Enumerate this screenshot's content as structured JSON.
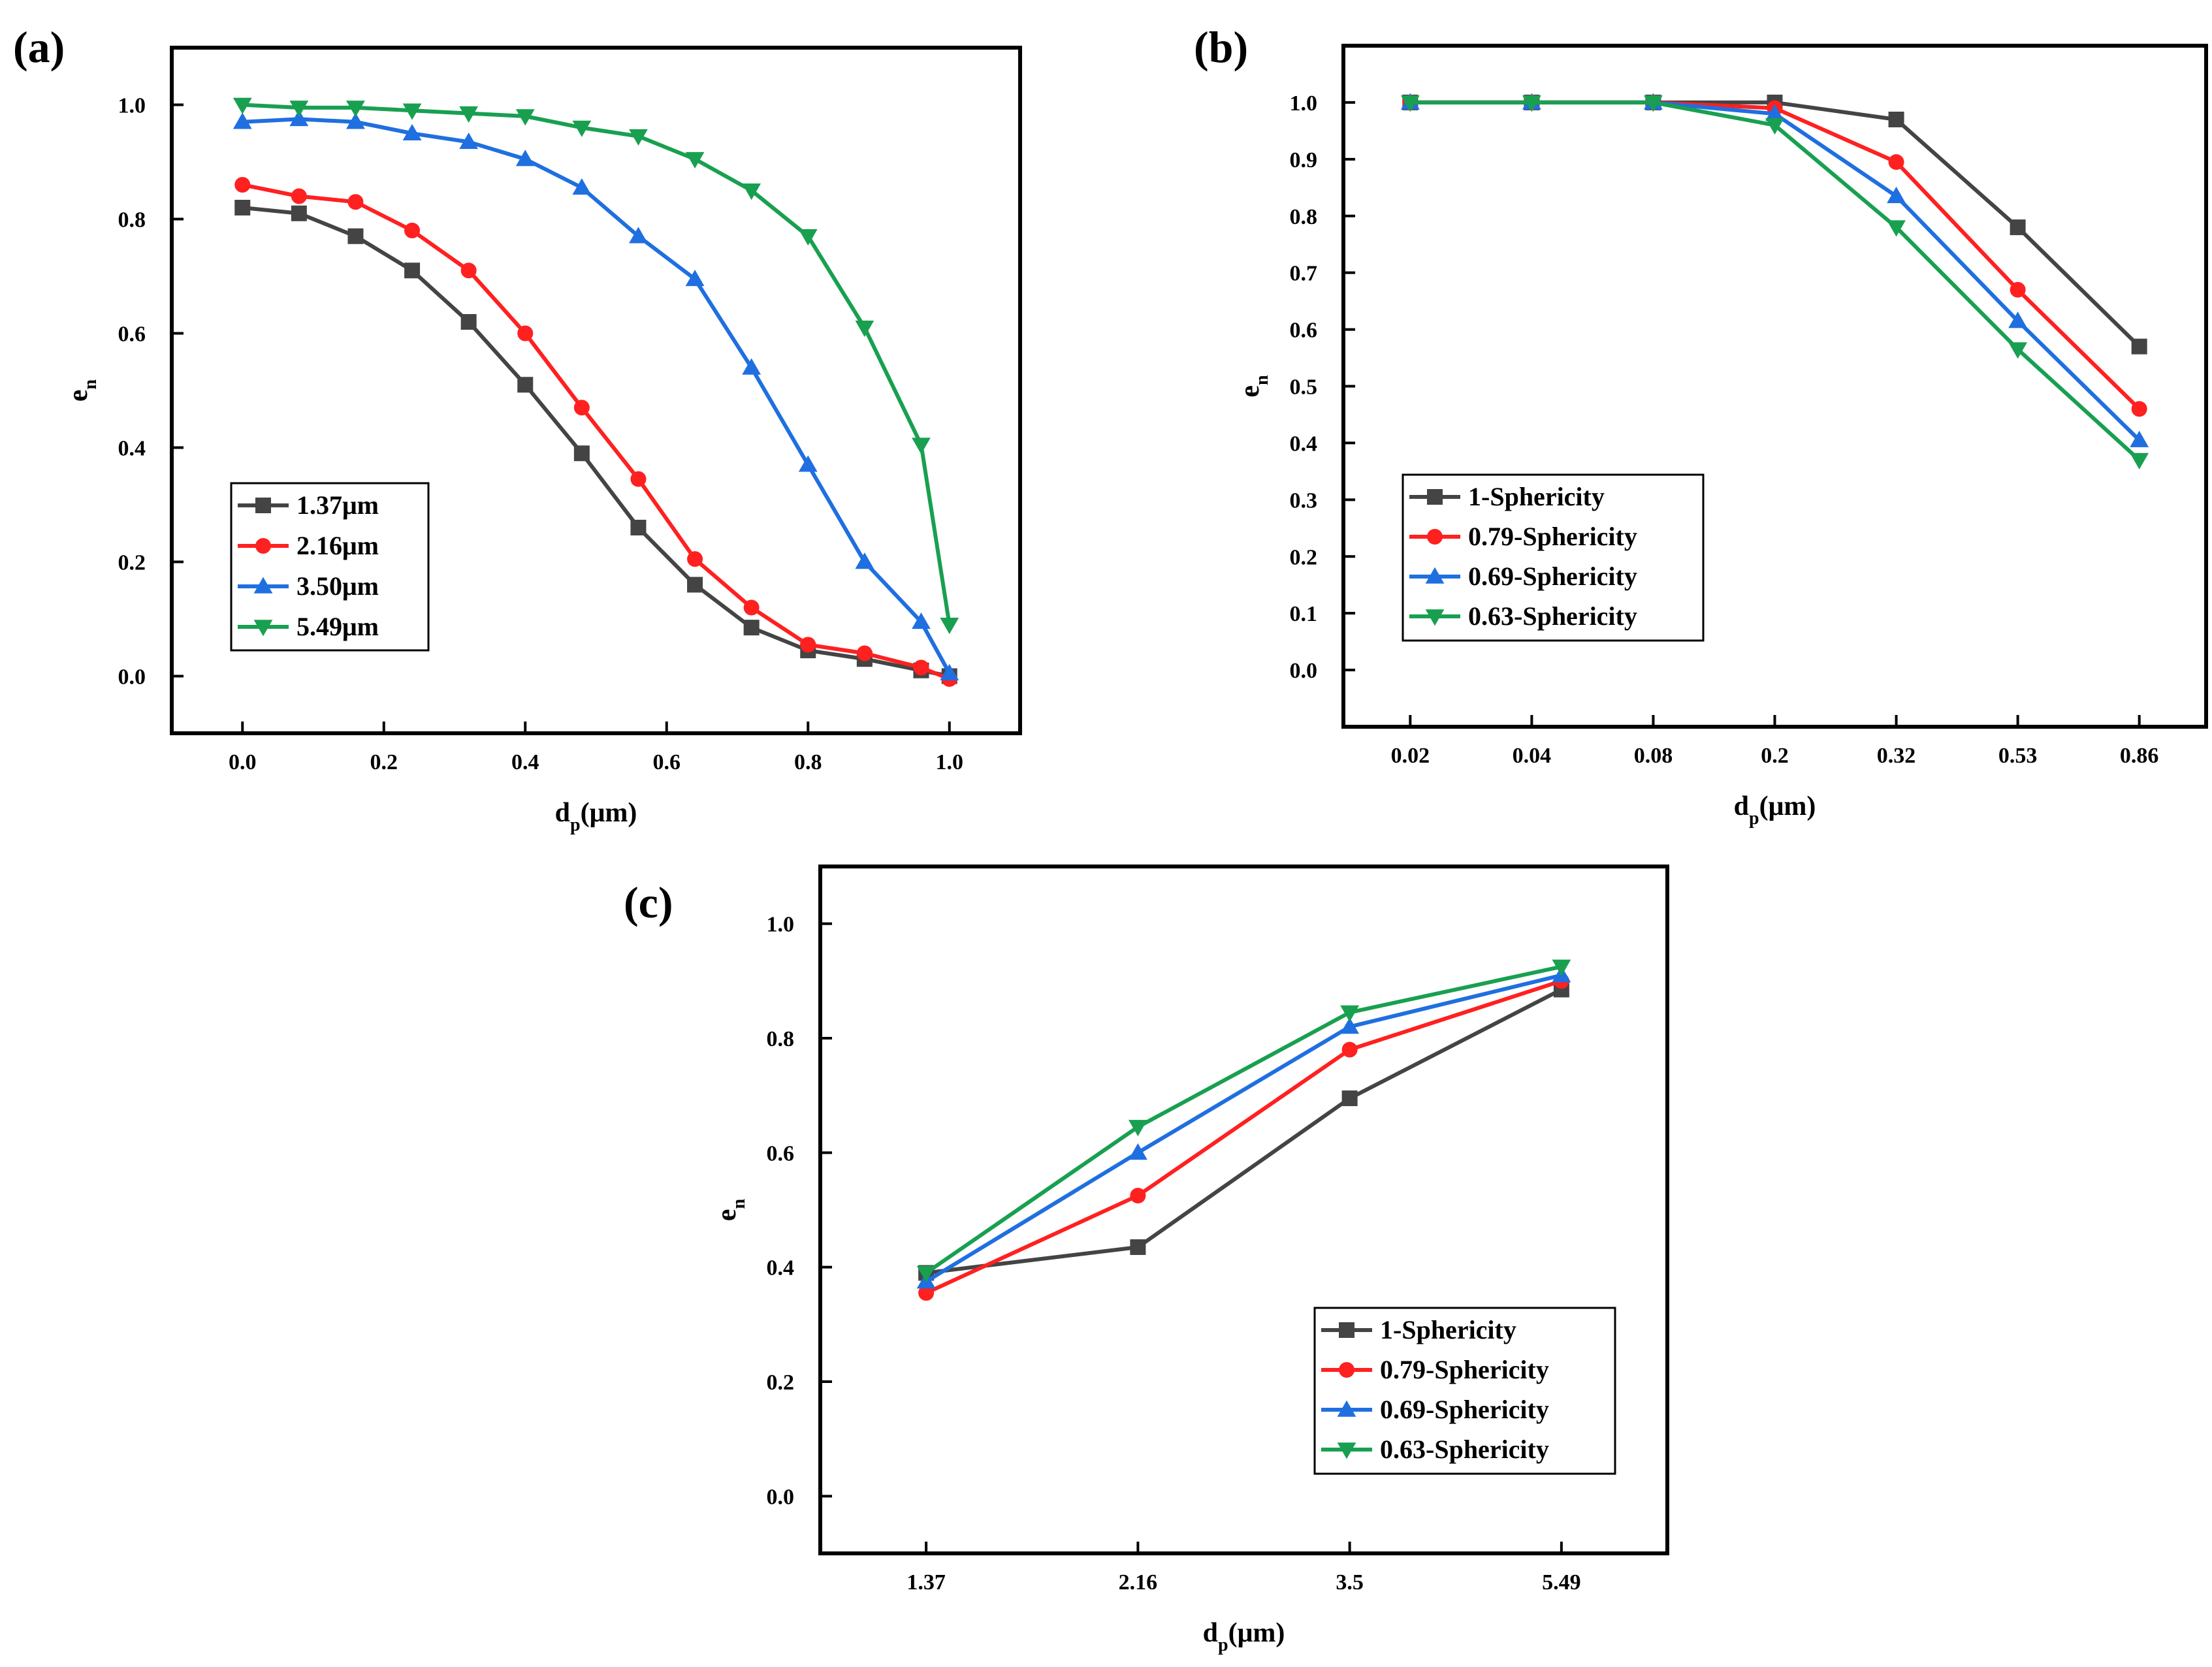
{
  "chart_data": [
    {
      "id": "a",
      "panel_label": "(a)",
      "type": "line",
      "xlabel": "d",
      "xlabel_sub": "p",
      "xlabel_unit": "(μm)",
      "ylabel": "e",
      "ylabel_sub": "n",
      "xlim": [
        -0.1,
        1.1
      ],
      "ylim": [
        -0.1,
        1.1
      ],
      "xticks": [
        0.0,
        0.2,
        0.4,
        0.6,
        0.8,
        1.0
      ],
      "xtick_labels": [
        "0.0",
        "0.2",
        "0.4",
        "0.6",
        "0.8",
        "1.0"
      ],
      "yticks": [
        0.0,
        0.2,
        0.4,
        0.6,
        0.8,
        1.0
      ],
      "ytick_labels": [
        "0.0",
        "0.2",
        "0.4",
        "0.6",
        "0.8",
        "1.0"
      ],
      "legend_position": "lower-left",
      "x": [
        0.0,
        0.08,
        0.16,
        0.24,
        0.32,
        0.4,
        0.48,
        0.56,
        0.64,
        0.72,
        0.8,
        0.88,
        0.96,
        1.0
      ],
      "series": [
        {
          "name": "1.37μm",
          "color": "#444444",
          "marker": "square",
          "values": [
            0.82,
            0.81,
            0.77,
            0.71,
            0.62,
            0.51,
            0.39,
            0.26,
            0.16,
            0.085,
            0.045,
            0.03,
            0.01,
            0.0
          ]
        },
        {
          "name": "2.16μm",
          "color": "#ff2020",
          "marker": "circle",
          "values": [
            0.86,
            0.84,
            0.83,
            0.78,
            0.71,
            0.6,
            0.47,
            0.345,
            0.205,
            0.12,
            0.055,
            0.04,
            0.015,
            -0.005
          ]
        },
        {
          "name": "3.50μm",
          "color": "#1f6fe0",
          "marker": "triangle-up",
          "values": [
            0.97,
            0.975,
            0.97,
            0.95,
            0.935,
            0.905,
            0.855,
            0.77,
            0.695,
            0.54,
            0.37,
            0.2,
            0.095,
            0.005
          ]
        },
        {
          "name": "5.49μm",
          "color": "#18a050",
          "marker": "triangle-down",
          "values": [
            1.0,
            0.995,
            0.995,
            0.99,
            0.985,
            0.98,
            0.96,
            0.945,
            0.905,
            0.85,
            0.77,
            0.61,
            0.405,
            0.09
          ]
        }
      ]
    },
    {
      "id": "b",
      "panel_label": "(b)",
      "type": "line",
      "xlabel": "d",
      "xlabel_sub": "p",
      "xlabel_unit": "(μm)",
      "ylabel": "e",
      "ylabel_sub": "n",
      "categories": [
        "0.02",
        "0.04",
        "0.08",
        "0.2",
        "0.32",
        "0.53",
        "0.86"
      ],
      "ylim": [
        -0.1,
        1.1
      ],
      "yticks": [
        0.0,
        0.1,
        0.2,
        0.3,
        0.4,
        0.5,
        0.6,
        0.7,
        0.8,
        0.9,
        1.0
      ],
      "ytick_labels": [
        "0.0",
        "0.1",
        "0.2",
        "0.3",
        "0.4",
        "0.5",
        "0.6",
        "0.7",
        "0.8",
        "0.9",
        "1.0"
      ],
      "legend_position": "lower-left",
      "series": [
        {
          "name": "1-Sphericity",
          "color": "#444444",
          "marker": "square",
          "values": [
            1.0,
            1.0,
            1.0,
            1.0,
            0.97,
            0.78,
            0.57
          ]
        },
        {
          "name": "0.79-Sphericity",
          "color": "#ff2020",
          "marker": "circle",
          "values": [
            1.0,
            1.0,
            1.0,
            0.99,
            0.895,
            0.67,
            0.46
          ]
        },
        {
          "name": "0.69-Sphericity",
          "color": "#1f6fe0",
          "marker": "triangle-up",
          "values": [
            1.0,
            1.0,
            1.0,
            0.98,
            0.835,
            0.615,
            0.405
          ]
        },
        {
          "name": "0.63-Sphericity",
          "color": "#18a050",
          "marker": "triangle-down",
          "values": [
            1.0,
            1.0,
            1.0,
            0.96,
            0.78,
            0.565,
            0.37
          ]
        }
      ]
    },
    {
      "id": "c",
      "panel_label": "(c)",
      "type": "line",
      "xlabel": "d",
      "xlabel_sub": "p",
      "xlabel_unit": "(μm)",
      "ylabel": "e",
      "ylabel_sub": "n",
      "categories": [
        "1.37",
        "2.16",
        "3.5",
        "5.49"
      ],
      "ylim": [
        -0.1,
        1.1
      ],
      "yticks": [
        0.0,
        0.2,
        0.4,
        0.6,
        0.8,
        1.0
      ],
      "ytick_labels": [
        "0.0",
        "0.2",
        "0.4",
        "0.6",
        "0.8",
        "1.0"
      ],
      "legend_position": "lower-right",
      "series": [
        {
          "name": "1-Sphericity",
          "color": "#444444",
          "marker": "square",
          "values": [
            0.39,
            0.435,
            0.695,
            0.885
          ]
        },
        {
          "name": "0.79-Sphericity",
          "color": "#ff2020",
          "marker": "circle",
          "values": [
            0.355,
            0.525,
            0.78,
            0.9
          ]
        },
        {
          "name": "0.69-Sphericity",
          "color": "#1f6fe0",
          "marker": "triangle-up",
          "values": [
            0.375,
            0.6,
            0.82,
            0.91
          ]
        },
        {
          "name": "0.63-Sphericity",
          "color": "#18a050",
          "marker": "triangle-down",
          "values": [
            0.39,
            0.645,
            0.845,
            0.925
          ]
        }
      ]
    }
  ]
}
